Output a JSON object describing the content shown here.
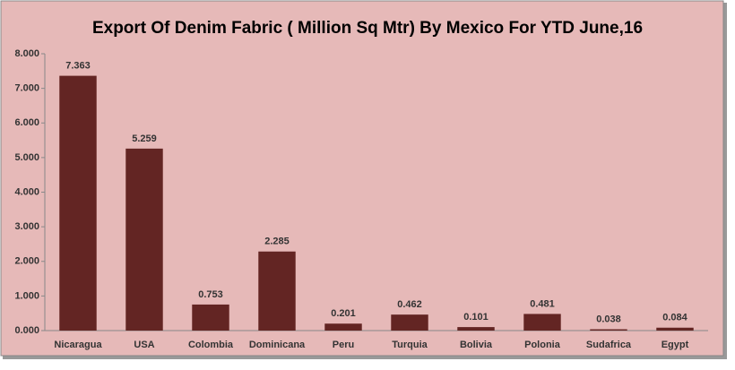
{
  "chart_data": {
    "type": "bar",
    "title": "Export  Of Denim Fabric ( Million Sq Mtr) By Mexico For YTD June,16",
    "categories": [
      "Nicaragua",
      "USA",
      "Colombia",
      "Dominicana",
      "Peru",
      "Turquia",
      "Bolivia",
      "Polonia",
      "Sudafrica",
      "Egypt"
    ],
    "values": [
      7.363,
      5.259,
      0.753,
      2.285,
      0.201,
      0.462,
      0.101,
      0.481,
      0.038,
      0.084
    ],
    "color": "#632523",
    "ylim": [
      0,
      8
    ],
    "yticks": [
      {
        "value": 0,
        "label": "0.000"
      },
      {
        "value": 1,
        "label": "1.000"
      },
      {
        "value": 2,
        "label": "2.000"
      },
      {
        "value": 3,
        "label": "3.000"
      },
      {
        "value": 4,
        "label": "4.000"
      },
      {
        "value": 5,
        "label": "5.000"
      },
      {
        "value": 6,
        "label": "6.000"
      },
      {
        "value": 7,
        "label": "7.000"
      },
      {
        "value": 8,
        "label": "8.000"
      }
    ],
    "grid": false
  }
}
